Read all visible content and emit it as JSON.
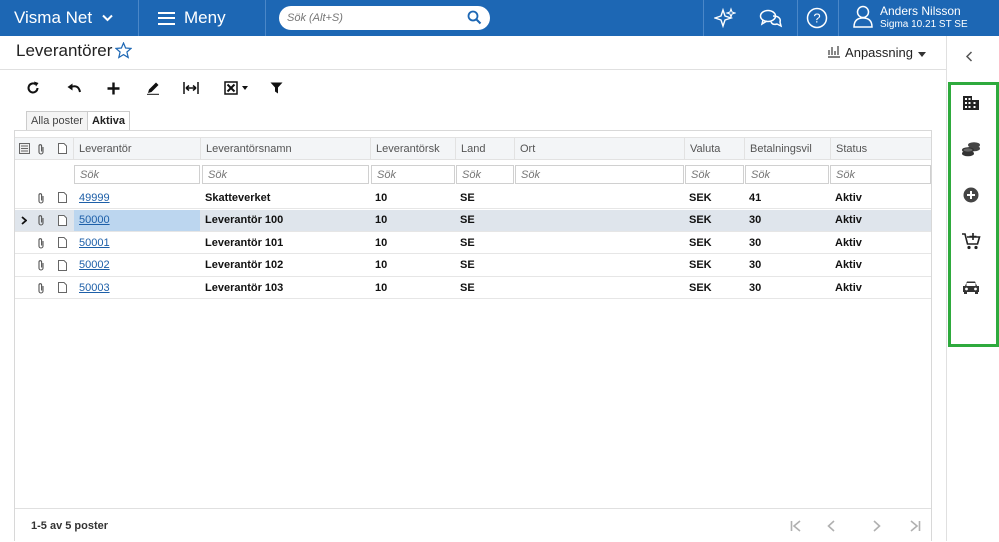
{
  "topbar": {
    "brand": "Visma Net",
    "menu_label": "Meny",
    "search_placeholder": "Sök (Alt+S)",
    "user_name": "Anders Nilsson",
    "user_company": "Sigma 10.21 ST SE",
    "icons": [
      "sparkle-icon",
      "chat-icon",
      "help-icon",
      "user-icon"
    ]
  },
  "page": {
    "title": "Leverantörer",
    "customize_label": "Anpassning"
  },
  "toolbar": [
    "refresh-icon",
    "undo-icon",
    "add-icon",
    "edit-icon",
    "fit-columns-icon",
    "export-icon",
    "filter-icon"
  ],
  "tabs": [
    {
      "label": "Alla poster",
      "active": false
    },
    {
      "label": "Aktiva",
      "active": true
    }
  ],
  "grid": {
    "columns": [
      "Leverantör",
      "Leverantörsnamn",
      "Leverantörsk",
      "Land",
      "Ort",
      "Valuta",
      "Betalningsvil",
      "Status"
    ],
    "filter_placeholder": "Sök",
    "rows": [
      {
        "id": "49999",
        "name": "Skatteverket",
        "klass": "10",
        "land": "SE",
        "ort": "",
        "valuta": "SEK",
        "villkor": "41",
        "status": "Aktiv"
      },
      {
        "id": "50000",
        "name": "Leverantör 100",
        "klass": "10",
        "land": "SE",
        "ort": "",
        "valuta": "SEK",
        "villkor": "30",
        "status": "Aktiv"
      },
      {
        "id": "50001",
        "name": "Leverantör 101",
        "klass": "10",
        "land": "SE",
        "ort": "",
        "valuta": "SEK",
        "villkor": "30",
        "status": "Aktiv"
      },
      {
        "id": "50002",
        "name": "Leverantör 102",
        "klass": "10",
        "land": "SE",
        "ort": "",
        "valuta": "SEK",
        "villkor": "30",
        "status": "Aktiv"
      },
      {
        "id": "50003",
        "name": "Leverantör 103",
        "klass": "10",
        "land": "SE",
        "ort": "",
        "valuta": "SEK",
        "villkor": "30",
        "status": "Aktiv"
      }
    ],
    "footer_count": "1-5 av 5 poster"
  },
  "right_panel": {
    "icons": [
      "building-icon",
      "coins-icon",
      "add-circle-icon",
      "cart-add-icon",
      "car-icon"
    ],
    "highlight_color": "#2eaa3d"
  },
  "colors": {
    "topbar": "#1d67b4",
    "link": "#1d5fa8",
    "selected_row": "#dfe5ec"
  }
}
